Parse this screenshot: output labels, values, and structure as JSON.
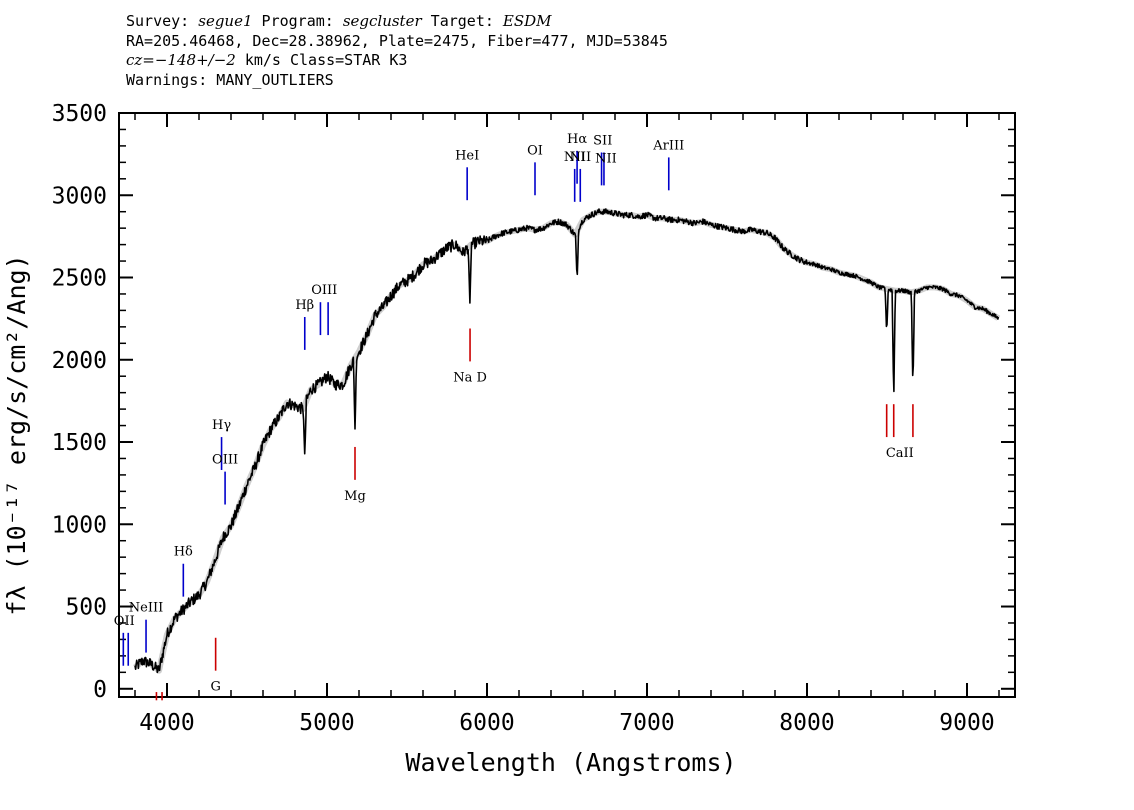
{
  "header": {
    "line1": {
      "survey_label": "Survey: ",
      "survey": "segue1",
      "program_label": " Program: ",
      "program": "segcluster",
      "target_label": " Target: ",
      "target": "ESDM"
    },
    "line2": "RA=205.46468, Dec=28.38962, Plate=2475, Fiber=477, MJD=53845",
    "line3": {
      "cz": "cz=−148+/−2",
      "rest": " km/s Class=STAR K3"
    },
    "line4": "Warnings: MANY_OUTLIERS"
  },
  "chart_data": {
    "type": "line",
    "title": "",
    "xlabel": "Wavelength (Angstroms)",
    "ylabel": "fλ (10⁻¹⁷ erg/s/cm²/Ang)",
    "xlim": [
      3700,
      9300
    ],
    "ylim": [
      -50,
      3500
    ],
    "xticks": [
      4000,
      5000,
      6000,
      7000,
      8000,
      9000
    ],
    "yticks": [
      0,
      500,
      1000,
      1500,
      2000,
      2500,
      3000,
      3500
    ],
    "grid": false,
    "legend": "none",
    "series": [
      {
        "color": "#000000",
        "x": [
          3800,
          3850,
          3900,
          3950,
          4000,
          4050,
          4100,
          4150,
          4200,
          4250,
          4300,
          4350,
          4400,
          4450,
          4500,
          4550,
          4600,
          4650,
          4700,
          4750,
          4800,
          4850,
          4900,
          4950,
          5000,
          5050,
          5100,
          5150,
          5200,
          5250,
          5300,
          5350,
          5400,
          5450,
          5500,
          5550,
          5600,
          5650,
          5700,
          5750,
          5800,
          5850,
          5900,
          5950,
          6000,
          6050,
          6100,
          6150,
          6200,
          6250,
          6300,
          6350,
          6400,
          6450,
          6500,
          6550,
          6600,
          6650,
          6700,
          6750,
          6800,
          6850,
          6900,
          6950,
          7000,
          7050,
          7100,
          7150,
          7200,
          7250,
          7300,
          7350,
          7400,
          7450,
          7500,
          7550,
          7600,
          7650,
          7700,
          7750,
          7800,
          7850,
          7900,
          7950,
          8000,
          8050,
          8100,
          8150,
          8200,
          8250,
          8300,
          8350,
          8400,
          8450,
          8500,
          8550,
          8600,
          8650,
          8700,
          8750,
          8800,
          8850,
          8900,
          8950,
          9000,
          9050,
          9100,
          9150,
          9200
        ],
        "y": [
          130,
          170,
          150,
          110,
          330,
          430,
          480,
          530,
          570,
          650,
          780,
          920,
          990,
          1110,
          1240,
          1350,
          1480,
          1580,
          1650,
          1740,
          1720,
          1700,
          1820,
          1850,
          1900,
          1850,
          1850,
          1970,
          2050,
          2150,
          2270,
          2320,
          2390,
          2450,
          2480,
          2520,
          2580,
          2600,
          2640,
          2680,
          2700,
          2650,
          2700,
          2720,
          2720,
          2750,
          2770,
          2780,
          2790,
          2800,
          2790,
          2800,
          2830,
          2840,
          2820,
          2760,
          2850,
          2880,
          2900,
          2900,
          2890,
          2880,
          2880,
          2870,
          2880,
          2860,
          2860,
          2850,
          2850,
          2840,
          2830,
          2840,
          2820,
          2810,
          2800,
          2790,
          2780,
          2790,
          2780,
          2770,
          2740,
          2680,
          2640,
          2610,
          2590,
          2580,
          2560,
          2550,
          2530,
          2520,
          2510,
          2490,
          2470,
          2440,
          2430,
          2420,
          2420,
          2410,
          2420,
          2440,
          2440,
          2430,
          2400,
          2390,
          2360,
          2320,
          2310,
          2280,
          2250
        ]
      }
    ],
    "absorption_dips": [
      {
        "x": 4861,
        "y": 1420
      },
      {
        "x": 5175,
        "y": 1580
      },
      {
        "x": 5893,
        "y": 2340
      },
      {
        "x": 6563,
        "y": 2480
      },
      {
        "x": 8498,
        "y": 2160
      },
      {
        "x": 8542,
        "y": 1750
      },
      {
        "x": 8662,
        "y": 1830
      }
    ],
    "emission_lines": [
      {
        "label": "OII",
        "x": 3727,
        "y_low": 140,
        "y_high": 340,
        "color": "#0000cc",
        "double": true
      },
      {
        "label": "NeIII",
        "x": 3869,
        "y_low": 220,
        "y_high": 420,
        "color": "#0000cc"
      },
      {
        "label": "Hδ",
        "x": 4102,
        "y_low": 560,
        "y_high": 760,
        "color": "#0000cc"
      },
      {
        "label": "Hγ",
        "x": 4341,
        "y_low": 1330,
        "y_high": 1530,
        "color": "#0000cc"
      },
      {
        "label": "OIII",
        "x": 4363,
        "y_low": 1120,
        "y_high": 1320,
        "color": "#0000cc"
      },
      {
        "label": "Hβ",
        "x": 4861,
        "y_low": 2060,
        "y_high": 2260,
        "color": "#0000cc"
      },
      {
        "label": "OIII",
        "x": 4959,
        "y_low": 2150,
        "y_high": 2350,
        "color": "#0000cc",
        "double": true,
        "x2": 5007
      },
      {
        "label": "HeI",
        "x": 5876,
        "y_low": 2970,
        "y_high": 3170,
        "color": "#0000cc"
      },
      {
        "label": "OI",
        "x": 6300,
        "y_low": 3000,
        "y_high": 3200,
        "color": "#0000cc"
      },
      {
        "label": "NII",
        "x": 6548,
        "y_low": 2960,
        "y_high": 3160,
        "color": "#0000cc"
      },
      {
        "label": "Hα",
        "x": 6563,
        "y_low": 3070,
        "y_high": 3270,
        "color": "#0000cc"
      },
      {
        "label": "NII",
        "x": 6583,
        "y_low": 2960,
        "y_high": 3160,
        "color": "#0000cc"
      },
      {
        "label": "SII",
        "x": 6716,
        "y_low": 3060,
        "y_high": 3260,
        "color": "#0000cc",
        "double": true,
        "x2": 6731,
        "label2": "NII"
      },
      {
        "label": "ArIII",
        "x": 7136,
        "y_low": 3030,
        "y_high": 3230,
        "color": "#0000cc"
      }
    ],
    "absorption_lines": [
      {
        "label": "",
        "x": 3934,
        "y_low": -70,
        "y_high": -20,
        "color": "#cc0000",
        "double": true,
        "x2": 3969
      },
      {
        "label": "G",
        "x": 4304,
        "y_low": 110,
        "y_high": 310,
        "color": "#cc0000"
      },
      {
        "label": "Mg",
        "x": 5175,
        "y_low": 1270,
        "y_high": 1470,
        "color": "#cc0000"
      },
      {
        "label": "Na D",
        "x": 5894,
        "y_low": 1990,
        "y_high": 2190,
        "color": "#cc0000"
      },
      {
        "label": "CaII",
        "x": 8498,
        "y_low": 1530,
        "y_high": 1730,
        "color": "#cc0000",
        "triple": [
          8498,
          8542,
          8662
        ]
      }
    ]
  }
}
